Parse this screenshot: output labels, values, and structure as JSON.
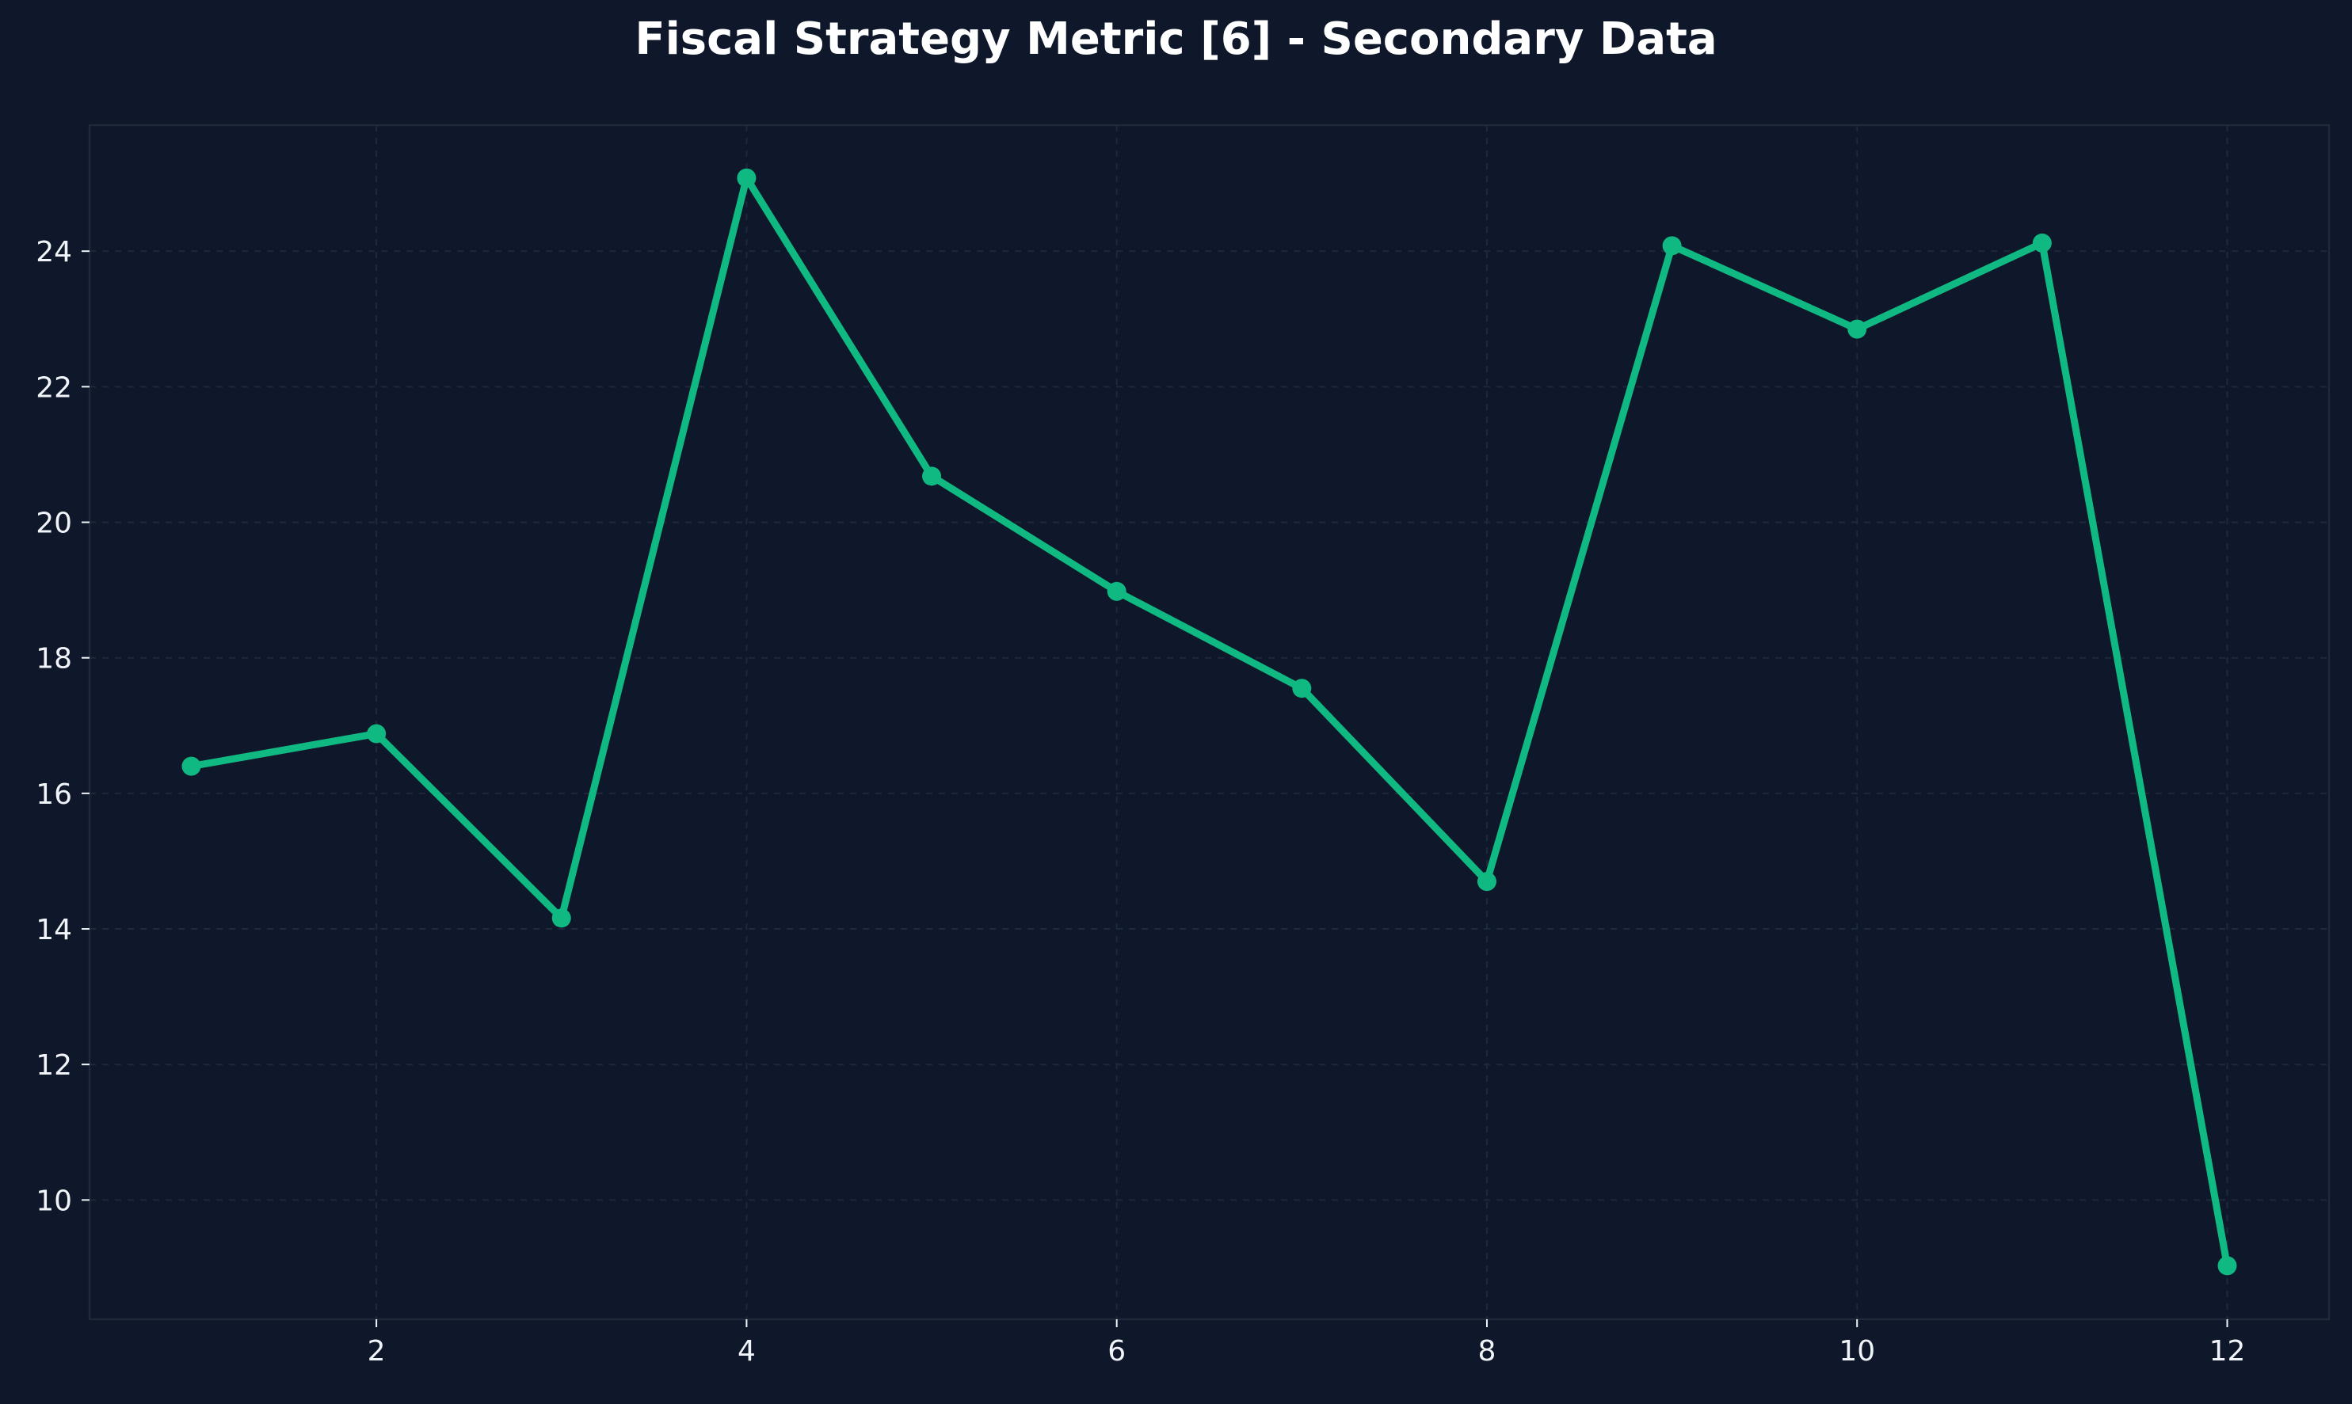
{
  "chart_data": {
    "type": "line",
    "title": "Fiscal Strategy Metric [6] - Secondary Data",
    "xlabel": "",
    "ylabel": "",
    "xlim": [
      0.45,
      12.55
    ],
    "ylim": [
      8.24,
      25.86
    ],
    "x_ticks": [
      2,
      4,
      6,
      8,
      10,
      12
    ],
    "y_ticks": [
      10,
      12,
      14,
      16,
      18,
      20,
      22,
      24
    ],
    "grid": true,
    "legend": "none",
    "series": [
      {
        "x": [
          1,
          2,
          3,
          4,
          5,
          6,
          7,
          8,
          9,
          10,
          11,
          12
        ],
        "values": [
          16.4,
          16.88,
          14.16,
          25.08,
          20.68,
          18.98,
          17.55,
          14.7,
          24.08,
          22.85,
          24.12,
          9.03
        ],
        "color": "#10b981"
      }
    ],
    "colors": {
      "background": "#0f172a",
      "line": "#10b981",
      "grid": "#1e293b",
      "frame": "#1f2937",
      "text": "#f1f5f9"
    }
  }
}
